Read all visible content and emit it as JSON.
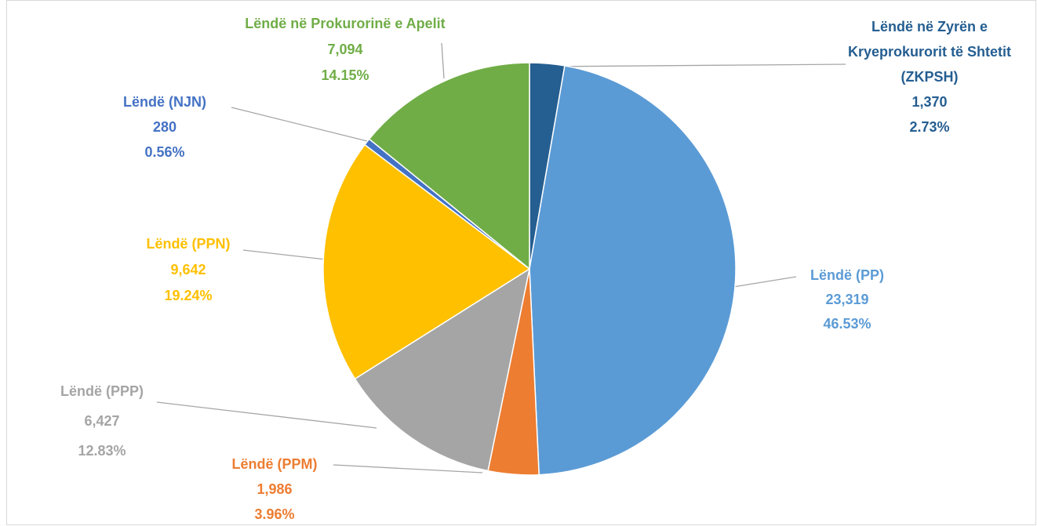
{
  "chart_data": {
    "type": "pie",
    "categories": [
      "Lëndë në Zyrën e Kryeprokurorit të Shtetit (ZKPSH)",
      "Lëndë (PP)",
      "Lëndë (PPM)",
      "Lëndë (PPP)",
      "Lëndë (PPN)",
      "Lëndë (NJN)",
      "Lëndë në Prokurorinë e Apelit"
    ],
    "values": [
      1370,
      23319,
      1986,
      6427,
      9642,
      280,
      7094
    ],
    "value_labels": [
      "1,370",
      "23,319",
      "1,986",
      "6,427",
      "9,642",
      "280",
      "7,094"
    ],
    "percent_labels": [
      "2.73%",
      "46.53%",
      "3.96%",
      "12.83%",
      "19.24%",
      "0.56%",
      "14.15%"
    ],
    "colors": [
      "#255e91",
      "#5b9bd5",
      "#ed7d31",
      "#a5a5a5",
      "#ffc000",
      "#4472c4",
      "#70ad47"
    ]
  }
}
